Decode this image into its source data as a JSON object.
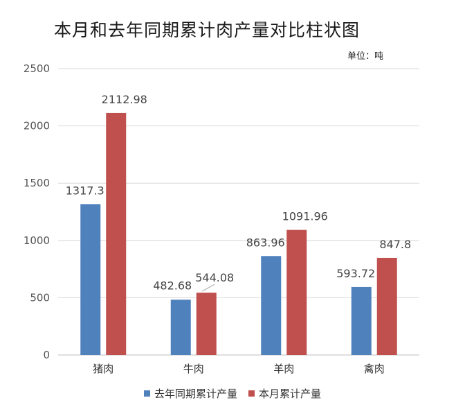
{
  "chart_data": {
    "type": "bar",
    "title": "本月和去年同期累计肉产量对比柱状图",
    "unit_note": "单位：吨",
    "categories": [
      "猪肉",
      "牛肉",
      "羊肉",
      "禽肉"
    ],
    "series": [
      {
        "name": "去年同期累计产量",
        "values": [
          1317.3,
          482.68,
          863.96,
          593.72
        ],
        "labels": [
          "1317.3",
          "482.68",
          "863.96",
          "593.72"
        ],
        "color": "#4f81bd"
      },
      {
        "name": "本月累计产量",
        "values": [
          2112.98,
          544.08,
          1091.96,
          847.8
        ],
        "labels": [
          "2112.98",
          "544.08",
          "1091.96",
          "847.8"
        ],
        "color": "#c0504d"
      }
    ],
    "yticks": [
      "0",
      "500",
      "1000",
      "1500",
      "2000",
      "2500"
    ],
    "ylim": [
      0,
      2500
    ],
    "grid": true,
    "legend_position": "bottom"
  }
}
